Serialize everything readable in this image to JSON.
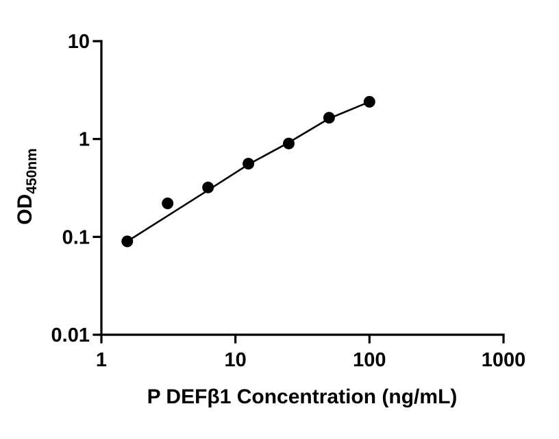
{
  "page": {
    "background": "#ffffff"
  },
  "chart_data": {
    "type": "scatter",
    "title": "",
    "xlabel": "P DEFβ1 Concentration (ng/mL)",
    "ylabel_main": "OD",
    "ylabel_sub": "450nm",
    "x_scale": "log",
    "y_scale": "log",
    "xlim": [
      1,
      1000
    ],
    "ylim": [
      0.01,
      10
    ],
    "x_ticks": [
      1,
      10,
      100,
      1000
    ],
    "y_ticks": [
      0.01,
      0.1,
      1,
      10
    ],
    "x": [
      1.56,
      3.12,
      6.25,
      12.5,
      25,
      50,
      100
    ],
    "y": [
      0.09,
      0.22,
      0.32,
      0.56,
      0.9,
      1.65,
      2.4
    ],
    "fit_line": [
      [
        1.56,
        0.09
      ],
      [
        6.25,
        0.3
      ],
      [
        12.5,
        0.55
      ],
      [
        25,
        0.92
      ],
      [
        50,
        1.62
      ],
      [
        100,
        2.4
      ]
    ],
    "colors": {
      "axis": "#000000",
      "point": "#000000",
      "line": "#000000"
    }
  }
}
